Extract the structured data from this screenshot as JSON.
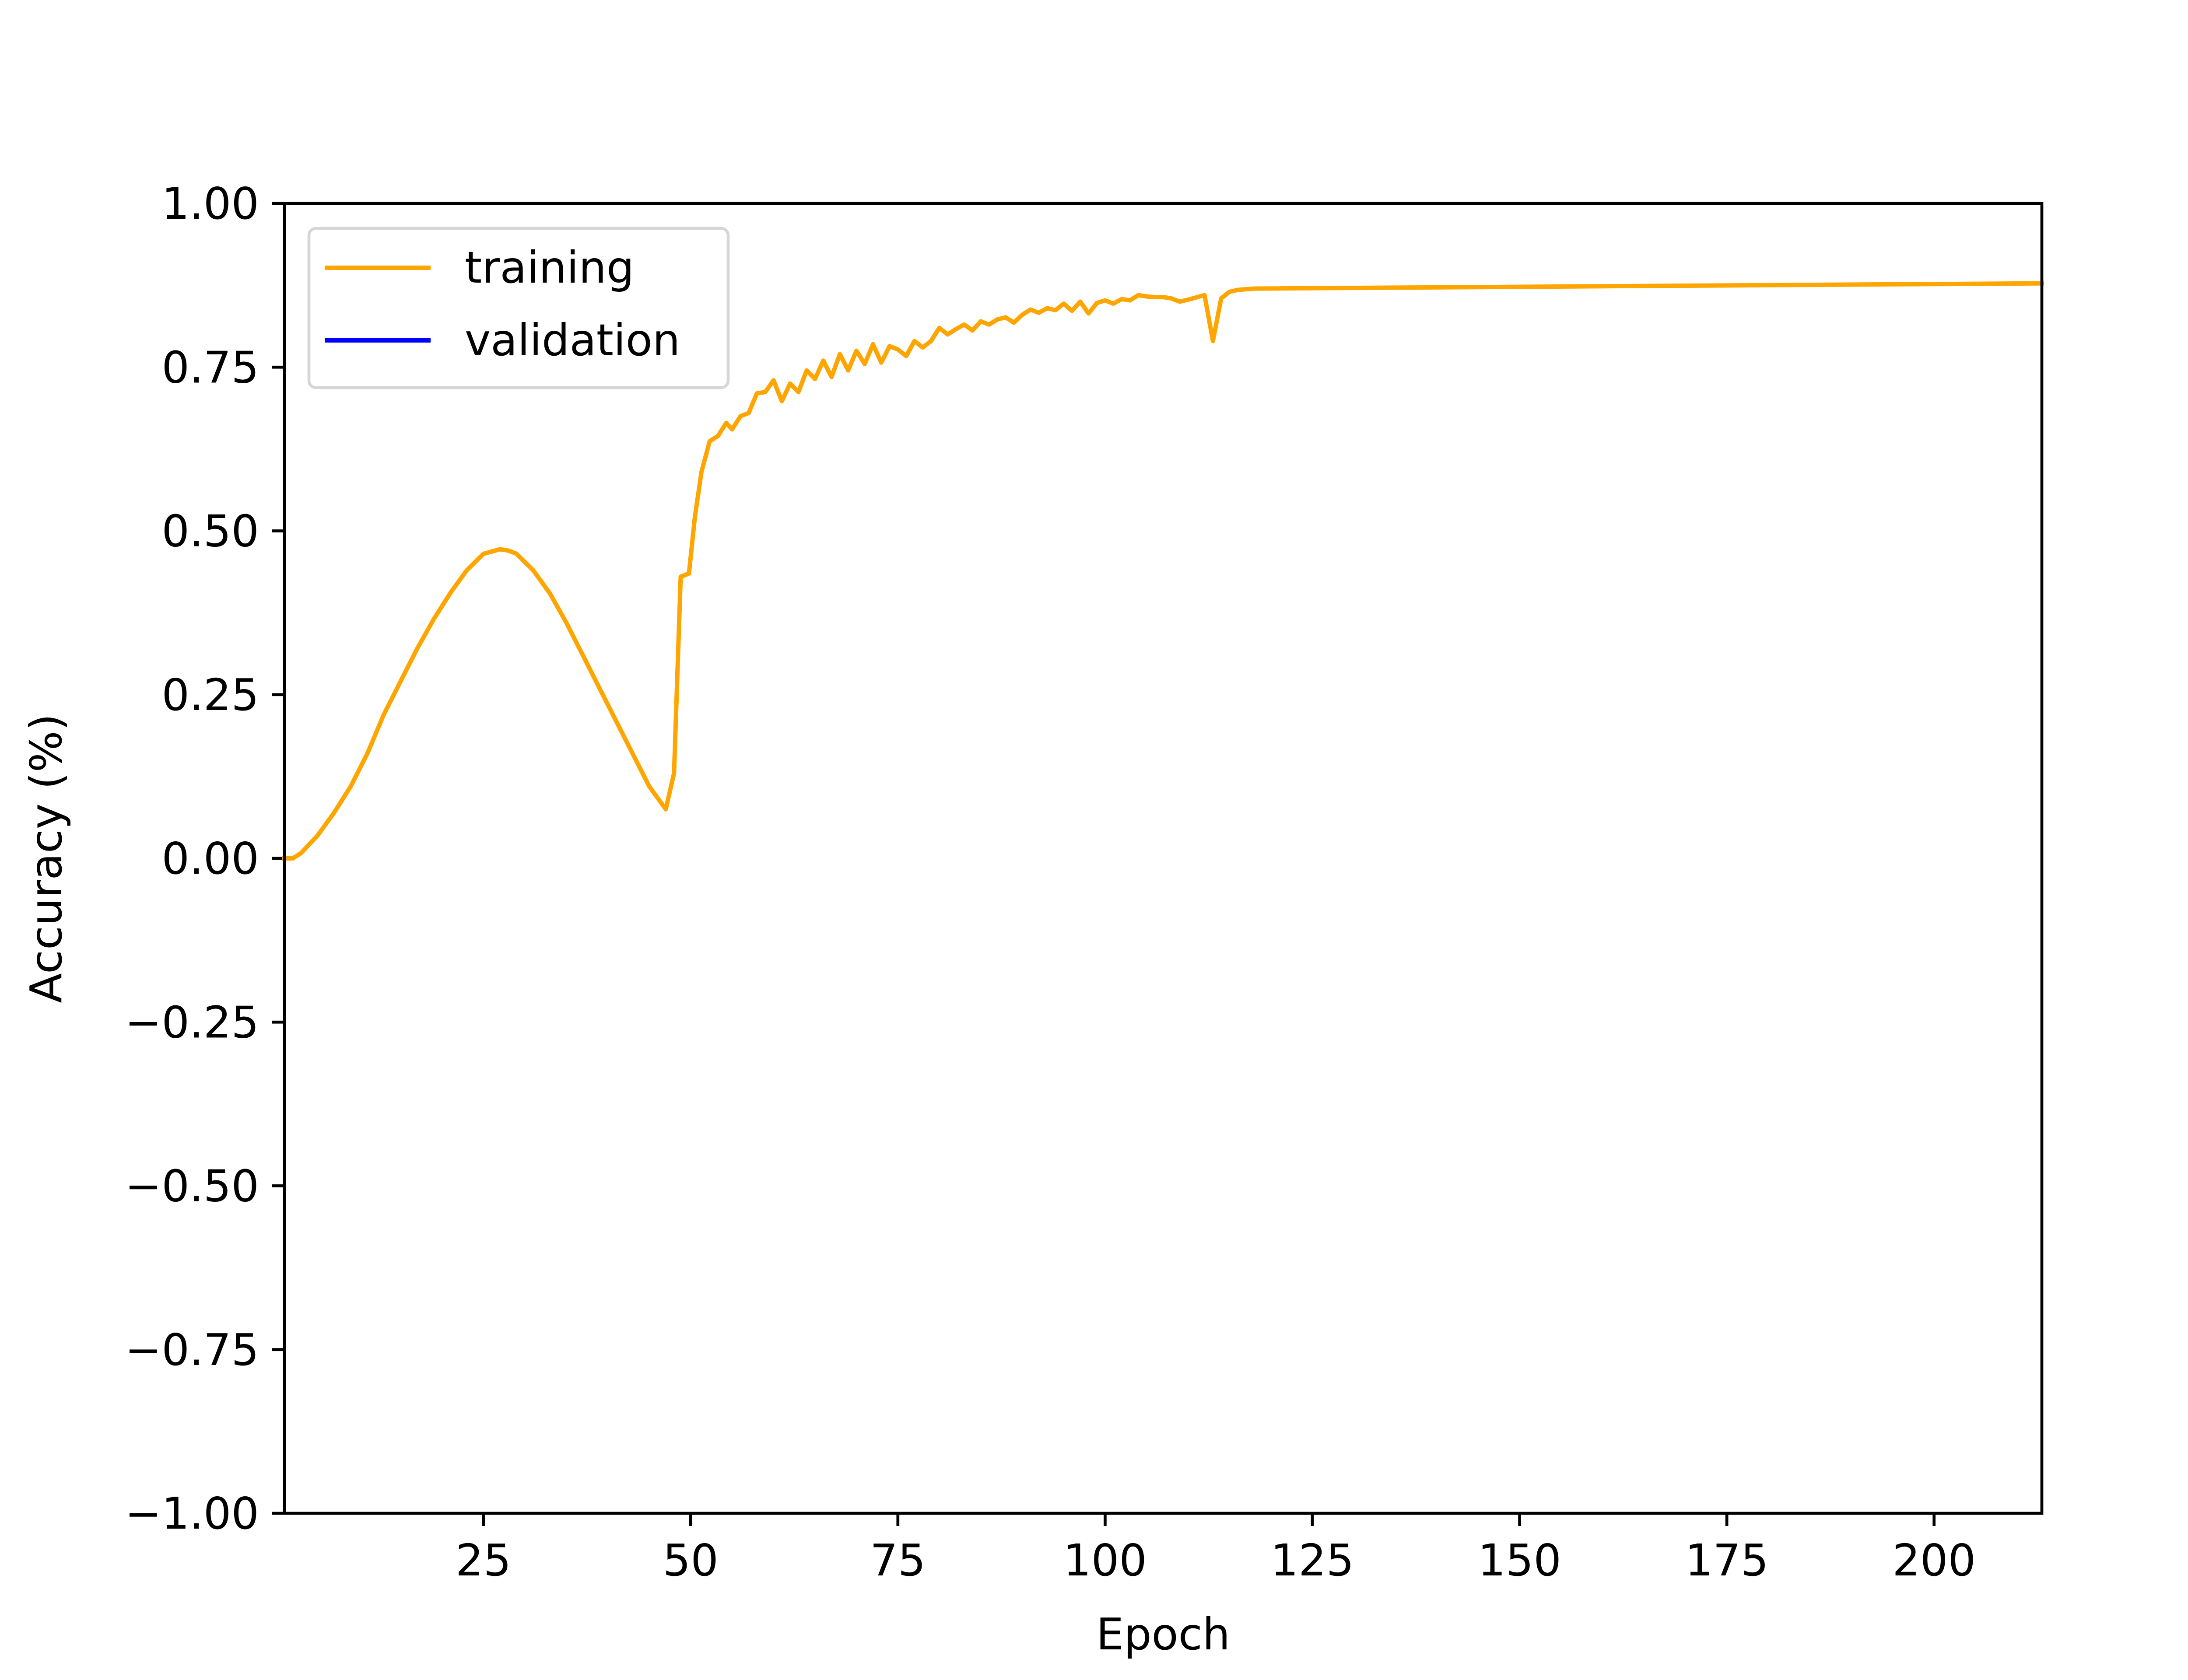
{
  "chart_data": {
    "type": "line",
    "title": "",
    "xlabel": "Epoch",
    "ylabel": "Accuracy (%)",
    "xlim": [
      1,
      213
    ],
    "ylim": [
      -1.0,
      1.0
    ],
    "xticks": [
      25,
      50,
      75,
      100,
      125,
      150,
      175,
      200
    ],
    "xtick_labels": [
      "25",
      "50",
      "75",
      "100",
      "125",
      "150",
      "175",
      "200"
    ],
    "yticks": [
      -1.0,
      -0.75,
      -0.5,
      -0.25,
      0.0,
      0.25,
      0.5,
      0.75,
      1.0
    ],
    "ytick_labels": [
      "−1.00",
      "−0.75",
      "−0.50",
      "−0.25",
      "0.00",
      "0.25",
      "0.50",
      "0.75",
      "1.00"
    ],
    "grid": false,
    "legend_position": "top-left",
    "series": [
      {
        "name": "training",
        "color": "#FFA500",
        "x": [
          1,
          2,
          3,
          5,
          7,
          9,
          11,
          13,
          15,
          17,
          19,
          21,
          23,
          25,
          27,
          28,
          29,
          31,
          33,
          35,
          37,
          39,
          41,
          43,
          45,
          47,
          48,
          48.8,
          49.8,
          50.5,
          51.3,
          52.3,
          53.3,
          54.3,
          55,
          56,
          57,
          58,
          59,
          60,
          61,
          62,
          63,
          64,
          65,
          66,
          67,
          68,
          69,
          70,
          71,
          72,
          73,
          74,
          75,
          76,
          77,
          78,
          79,
          80,
          81,
          82,
          83,
          84,
          85,
          86,
          87,
          88,
          89,
          90,
          91,
          92,
          93,
          94,
          95,
          96,
          97,
          98,
          99,
          100,
          101,
          102,
          103,
          104,
          105,
          106,
          107,
          108,
          109,
          110,
          112,
          113,
          114,
          115,
          116,
          117,
          118,
          213
        ],
        "values": [
          0.0,
          0.0,
          0.008,
          0.035,
          0.07,
          0.11,
          0.16,
          0.22,
          0.27,
          0.32,
          0.365,
          0.405,
          0.44,
          0.465,
          0.472,
          0.47,
          0.465,
          0.44,
          0.405,
          0.36,
          0.31,
          0.26,
          0.21,
          0.16,
          0.11,
          0.075,
          0.13,
          0.43,
          0.435,
          0.52,
          0.59,
          0.637,
          0.645,
          0.665,
          0.655,
          0.675,
          0.68,
          0.71,
          0.712,
          0.73,
          0.698,
          0.725,
          0.712,
          0.745,
          0.732,
          0.76,
          0.735,
          0.77,
          0.745,
          0.775,
          0.755,
          0.785,
          0.757,
          0.782,
          0.777,
          0.767,
          0.79,
          0.78,
          0.79,
          0.81,
          0.8,
          0.808,
          0.815,
          0.806,
          0.82,
          0.815,
          0.823,
          0.826,
          0.818,
          0.83,
          0.838,
          0.833,
          0.84,
          0.837,
          0.847,
          0.836,
          0.85,
          0.832,
          0.848,
          0.852,
          0.847,
          0.854,
          0.852,
          0.86,
          0.858,
          0.857,
          0.857,
          0.855,
          0.85,
          0.853,
          0.86,
          0.79,
          0.855,
          0.865,
          0.868,
          0.869,
          0.87,
          0.878
        ]
      },
      {
        "name": "validation",
        "color": "#0000FF",
        "x": [],
        "values": []
      }
    ]
  }
}
